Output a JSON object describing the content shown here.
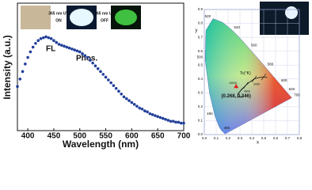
{
  "chart_data": [
    {
      "type": "scatter",
      "xlabel": "Wavelength (nm)",
      "ylabel": "Intensity (a.u.)",
      "annotations": [
        "FL",
        "Phos.",
        "365 nm UV",
        "ON",
        "365 nm UV",
        "OFF"
      ],
      "color": "#22409a",
      "x": [
        380,
        385,
        390,
        395,
        400,
        405,
        410,
        415,
        420,
        425,
        430,
        435,
        440,
        445,
        450,
        455,
        460,
        465,
        470,
        475,
        480,
        485,
        490,
        495,
        500,
        505,
        510,
        515,
        520,
        525,
        530,
        535,
        540,
        545,
        550,
        555,
        560,
        565,
        570,
        575,
        580,
        585,
        590,
        595,
        600,
        605,
        610,
        615,
        620,
        625,
        630,
        635,
        640,
        645,
        650,
        655,
        660,
        665,
        670,
        675,
        680,
        685,
        690,
        695,
        700
      ],
      "values": [
        0.47,
        0.55,
        0.63,
        0.71,
        0.78,
        0.84,
        0.89,
        0.93,
        0.96,
        0.98,
        0.99,
        1.0,
        0.99,
        0.98,
        0.96,
        0.94,
        0.92,
        0.91,
        0.9,
        0.89,
        0.88,
        0.87,
        0.86,
        0.85,
        0.84,
        0.82,
        0.8,
        0.78,
        0.75,
        0.72,
        0.69,
        0.66,
        0.63,
        0.6,
        0.57,
        0.54,
        0.51,
        0.48,
        0.45,
        0.42,
        0.39,
        0.36,
        0.34,
        0.32,
        0.3,
        0.28,
        0.26,
        0.24,
        0.23,
        0.21,
        0.2,
        0.18,
        0.17,
        0.16,
        0.15,
        0.14,
        0.13,
        0.12,
        0.11,
        0.1,
        0.1,
        0.09,
        0.09,
        0.08,
        0.08
      ],
      "xlim": [
        380,
        700
      ],
      "xticks": [
        400,
        450,
        500,
        550,
        600,
        650,
        700
      ],
      "ylim": [
        0,
        1.35
      ]
    },
    {
      "type": "cie",
      "xlabel": "x",
      "ylabel": "y",
      "xlim": [
        0,
        0.8
      ],
      "ylim": [
        0,
        0.9
      ],
      "xticks": [
        {
          "value": 0,
          "label": "0.0"
        },
        0.1,
        0.2,
        0.3,
        0.4,
        0.5,
        0.6,
        0.7,
        0.8
      ],
      "yticks": [
        {
          "value": 0,
          "label": "0.0"
        },
        0.1,
        0.2,
        0.3,
        0.4,
        0.5,
        0.6,
        0.7,
        0.8,
        0.9
      ],
      "wavelength_labels": [
        "460",
        "480",
        "500",
        "520",
        "540",
        "560",
        "580",
        "600",
        "620",
        "700"
      ],
      "cct_label": "Tc(°K)",
      "cct_values": [
        "10000",
        "6000",
        "4000",
        "2000"
      ],
      "point": {
        "x": 0.268,
        "y": 0.346,
        "label": "(0.268, 0.346)",
        "color": "#e02020"
      }
    }
  ]
}
